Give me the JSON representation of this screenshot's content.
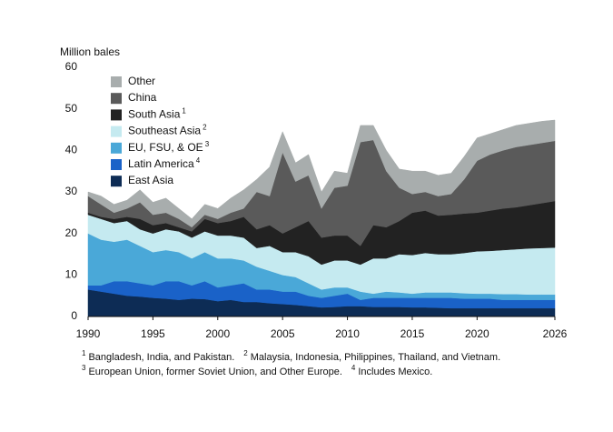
{
  "chart_data": {
    "type": "stacked-area",
    "y_label": "Million bales",
    "x": [
      1990,
      1991,
      1992,
      1993,
      1994,
      1995,
      1996,
      1997,
      1998,
      1999,
      2000,
      2001,
      2002,
      2003,
      2004,
      2005,
      2006,
      2007,
      2008,
      2009,
      2010,
      2011,
      2012,
      2013,
      2014,
      2015,
      2016,
      2017,
      2018,
      2019,
      2020,
      2021,
      2022,
      2023,
      2024,
      2025,
      2026
    ],
    "xlim": [
      1990,
      2026
    ],
    "xticks": [
      1990,
      1995,
      2000,
      2005,
      2010,
      2015,
      2020,
      2026
    ],
    "ylim": [
      0,
      60
    ],
    "yticks": [
      0,
      10,
      20,
      30,
      40,
      50,
      60
    ],
    "grid": false,
    "legend": "top-left",
    "series": [
      {
        "name": "East Asia",
        "color": "#0d2c55",
        "values": [
          6.5,
          6,
          5.5,
          5,
          4.8,
          4.5,
          4.3,
          4,
          4.3,
          4.2,
          3.7,
          4,
          3.5,
          3.5,
          3.2,
          3,
          2.8,
          2.5,
          2.2,
          2.3,
          2.5,
          2.5,
          2.3,
          2.3,
          2.3,
          2.2,
          2.2,
          2.1,
          2,
          2,
          2,
          2,
          2,
          2,
          2,
          2,
          2
        ]
      },
      {
        "name": "Latin America",
        "footnote": "4",
        "color": "#1a62c8",
        "values": [
          1,
          1.5,
          3,
          3.5,
          3.2,
          3,
          4.2,
          4.5,
          3.2,
          4.3,
          3.3,
          3.5,
          4.5,
          3,
          3.3,
          3,
          3.2,
          2.5,
          2.3,
          2.7,
          3,
          1.5,
          2.2,
          2.2,
          2.2,
          2.3,
          2.3,
          2.4,
          2.5,
          2.3,
          2.3,
          2.3,
          2,
          2,
          2,
          2,
          2
        ]
      },
      {
        "name": "EU, FSU, & OE",
        "footnote": "3",
        "color": "#4aa8d8",
        "values": [
          12.5,
          11,
          9.5,
          10,
          9,
          8,
          7.5,
          7,
          6.5,
          7,
          7,
          6.5,
          5.5,
          5.5,
          4.5,
          4,
          3.5,
          3,
          2,
          2,
          1.5,
          2,
          1,
          1.5,
          1.3,
          1,
          1.3,
          1.3,
          1.3,
          1.3,
          1.2,
          1.2,
          1.4,
          1.4,
          1.3,
          1.3,
          1.3
        ]
      },
      {
        "name": "Southeast Asia",
        "footnote": "2",
        "color": "#c5eaf0",
        "values": [
          4.5,
          5,
          4.5,
          4.5,
          4,
          4.5,
          5,
          5,
          5,
          5,
          5.5,
          5.5,
          5.5,
          4.5,
          6,
          5.5,
          6,
          6.5,
          6,
          6.5,
          6.5,
          6.5,
          8.5,
          8,
          9.2,
          9.3,
          9.5,
          9.2,
          9.2,
          9.7,
          10.2,
          10.3,
          10.6,
          10.8,
          11.1,
          11.2,
          11.3
        ]
      },
      {
        "name": "South Asia",
        "footnote": "1",
        "color": "#222222",
        "values": [
          0.5,
          0.5,
          1,
          1,
          2.5,
          2,
          1.5,
          1,
          1.5,
          3,
          3,
          3.5,
          5,
          4.5,
          5,
          4.5,
          6,
          8.5,
          6.5,
          6,
          6,
          4.5,
          8,
          7.5,
          8,
          10.2,
          10.2,
          9.3,
          9.5,
          9.5,
          9.3,
          9.7,
          10,
          10.1,
          10.4,
          10.8,
          11.2
        ]
      },
      {
        "name": "China",
        "color": "#5a5a5a",
        "values": [
          4,
          3,
          1.5,
          2,
          4,
          2.5,
          2.5,
          2,
          1,
          1,
          1,
          2,
          2,
          9,
          7,
          19.5,
          11,
          11,
          7,
          11.5,
          12,
          25,
          20.5,
          13.5,
          8,
          4.5,
          4.5,
          4.7,
          5,
          8.2,
          12.5,
          13.5,
          14,
          14.5,
          14.5,
          14.5,
          14.5
        ]
      },
      {
        "name": "Other",
        "color": "#a8adad",
        "values": [
          1,
          2,
          2,
          2,
          3,
          3,
          3.5,
          2.5,
          2,
          2.5,
          2.5,
          3.5,
          4.5,
          3,
          7,
          5,
          4.5,
          5,
          4,
          4,
          3,
          4,
          3.5,
          5,
          4.5,
          5.5,
          5,
          5,
          5,
          5.5,
          5.5,
          5,
          5,
          5.2,
          5.2,
          5.2,
          5
        ]
      }
    ],
    "footnotes": [
      {
        "mark": "1",
        "text": "Bangladesh, India, and Pakistan."
      },
      {
        "mark": "2",
        "text": "Malaysia, Indonesia, Philippines, Thailand, and Vietnam."
      },
      {
        "mark": "3",
        "text": "European Union, former Soviet Union, and Other Europe."
      },
      {
        "mark": "4",
        "text": "Includes Mexico."
      }
    ]
  }
}
